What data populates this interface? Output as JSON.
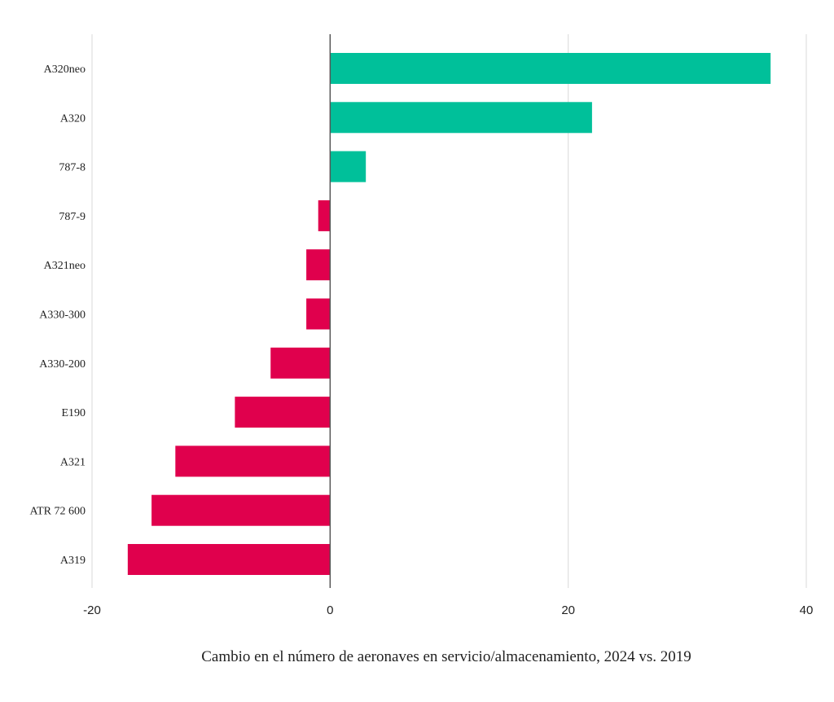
{
  "chart_data": {
    "type": "bar",
    "orientation": "horizontal",
    "categories": [
      "A320neo",
      "A320",
      "787-8",
      "787-9",
      "A321neo",
      "A330-300",
      "A330-200",
      "E190",
      "A321",
      "ATR 72 600",
      "A319"
    ],
    "values": [
      37,
      22,
      3,
      -1,
      -2,
      -2,
      -5,
      -8,
      -13,
      -15,
      -17
    ],
    "xlabel": "Cambio en el número de aeronaves en servicio/almacenamiento, 2024 vs. 2019",
    "xlim": [
      -20,
      40
    ],
    "xticks": [
      -20,
      0,
      20,
      40
    ],
    "grid": true,
    "colors": {
      "positive": "#00c09a",
      "negative": "#e0004d",
      "gridline": "#d9d9d9",
      "zeroline": "#555555"
    }
  }
}
